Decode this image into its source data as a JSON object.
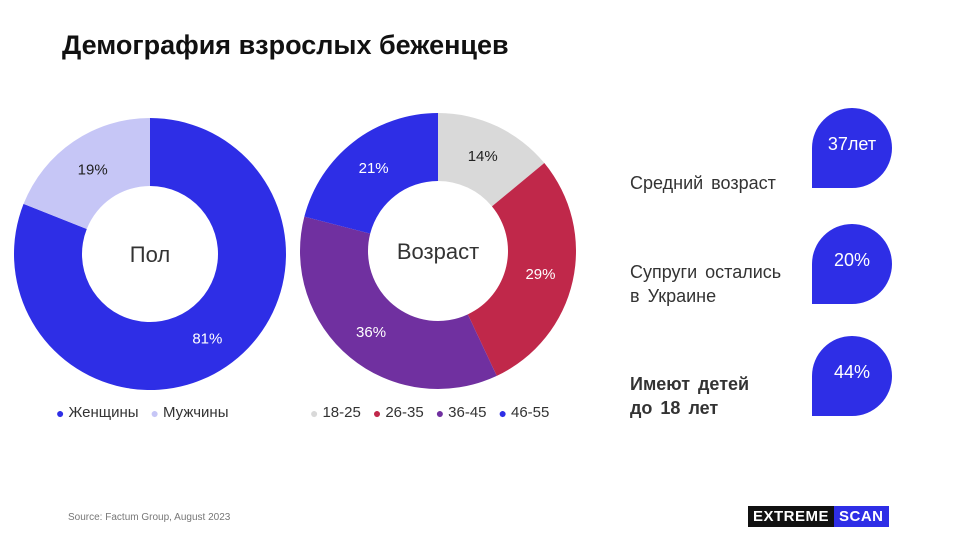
{
  "title": "Демография взрослых беженцев",
  "colors": {
    "accent": "#2e2ee6"
  },
  "chart_data": [
    {
      "type": "pie",
      "title": "Пол",
      "categories": [
        "Женщины",
        "Мужчины"
      ],
      "values": [
        81,
        19
      ],
      "labels": [
        "81%",
        "19%"
      ],
      "colors": [
        "#2e2ee6",
        "#c6c6f6"
      ],
      "legend": "bottom"
    },
    {
      "type": "pie",
      "title": "Возраст",
      "categories": [
        "18-25",
        "26-35",
        "36-45",
        "46-55"
      ],
      "values": [
        14,
        29,
        36,
        21
      ],
      "labels": [
        "14%",
        "29%",
        "36%",
        "21%"
      ],
      "colors": [
        "#d9d9d9",
        "#c0284a",
        "#7030a0",
        "#2e2ee6"
      ],
      "legend": "bottom"
    }
  ],
  "stats": [
    {
      "label": "Средний возраст",
      "value": "37лет"
    },
    {
      "label_line1": "Супруги остались",
      "label_line2": "в Украине",
      "value": "20%"
    },
    {
      "label_line1": "Имеют детей",
      "label_line2": "до 18 лет",
      "value": "44%"
    }
  ],
  "source": "Source: Factum Group, August 2023",
  "logo": {
    "part1": "EXTREME",
    "part2": "SCAN"
  }
}
